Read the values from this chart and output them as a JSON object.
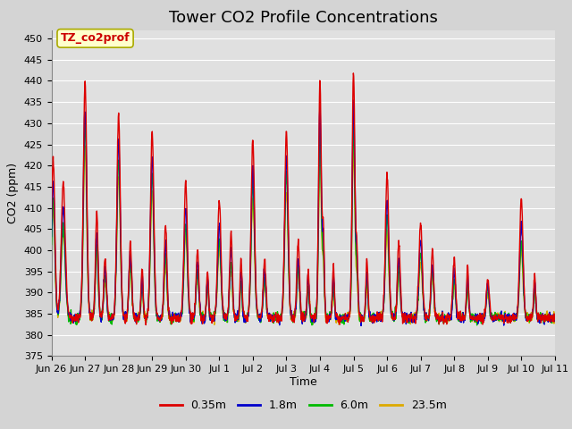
{
  "title": "Tower CO2 Profile Concentrations",
  "xlabel": "Time",
  "ylabel": "CO2 (ppm)",
  "ylim": [
    375,
    452
  ],
  "yticks": [
    375,
    380,
    385,
    390,
    395,
    400,
    405,
    410,
    415,
    420,
    425,
    430,
    435,
    440,
    445,
    450
  ],
  "series_labels": [
    "0.35m",
    "1.8m",
    "6.0m",
    "23.5m"
  ],
  "series_colors": [
    "#dd0000",
    "#0000cc",
    "#00bb00",
    "#ddaa00"
  ],
  "annotation_text": "TZ_co2prof",
  "annotation_bg": "#ffffcc",
  "annotation_border": "#aaaa00",
  "fig_bg": "#d4d4d4",
  "plot_bg": "#e0e0e0",
  "grid_color": "#ffffff",
  "title_fontsize": 13,
  "axis_label_fontsize": 9,
  "tick_label_fontsize": 8,
  "n_points": 1500,
  "xtick_labels": [
    "Jun 26",
    "Jun 27",
    "Jun 28",
    "Jun 29",
    "Jun 30",
    "Jul 1",
    "Jul 2",
    "Jul 3",
    "Jul 4",
    "Jul 5",
    "Jul 6",
    "Jul 7",
    "Jul 8",
    "Jul 9",
    "Jul 10",
    "Jul 11"
  ]
}
